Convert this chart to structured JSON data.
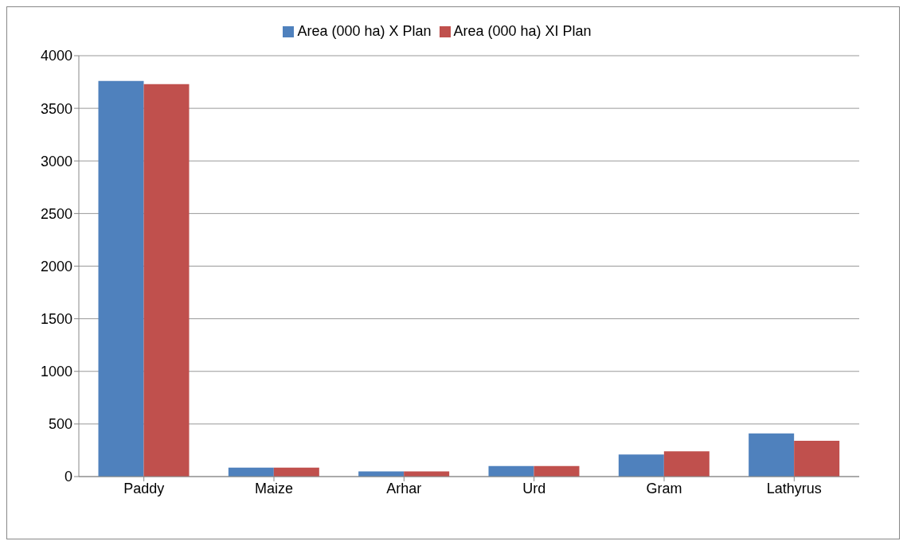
{
  "chart_data": {
    "type": "bar",
    "categories": [
      "Paddy",
      "Maize",
      "Arhar",
      "Urd",
      "Gram",
      "Lathyrus"
    ],
    "series": [
      {
        "name": "Area (000 ha) X Plan",
        "color": "#4f81bd",
        "values": [
          3760,
          85,
          50,
          100,
          210,
          410
        ]
      },
      {
        "name": "Area (000 ha) XI Plan",
        "color": "#c0504d",
        "values": [
          3730,
          85,
          50,
          100,
          240,
          340
        ]
      }
    ],
    "ylim": [
      0,
      4000
    ],
    "yticks": [
      0,
      500,
      1000,
      1500,
      2000,
      2500,
      3000,
      3500,
      4000
    ],
    "grid": "y",
    "legend": "top"
  }
}
